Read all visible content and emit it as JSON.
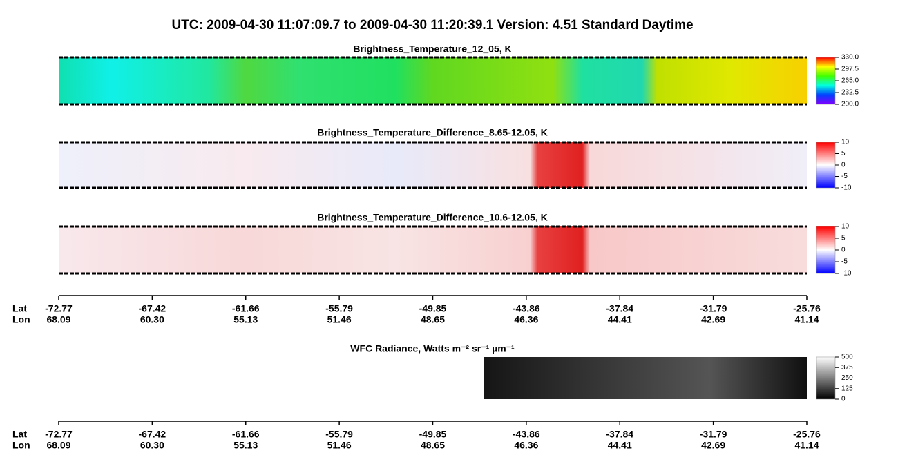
{
  "title": "UTC:  2009-04-30   11:07:09.7  to  2009-04-30   11:20:39.1    Version: 4.51  Standard Daytime",
  "panels": [
    {
      "title": "Brightness_Temperature_12_05, K",
      "colorbar": [
        "330.0",
        "297.5",
        "265.0",
        "232.5",
        "200.0"
      ]
    },
    {
      "title": "Brightness_Temperature_Difference_8.65-12.05, K",
      "colorbar": [
        "10",
        "5",
        "0",
        "-5",
        "-10"
      ]
    },
    {
      "title": "Brightness_Temperature_Difference_10.6-12.05, K",
      "colorbar": [
        "10",
        "5",
        "0",
        "-5",
        "-10"
      ]
    },
    {
      "title": "WFC Radiance, Watts m⁻² sr⁻¹ µm⁻¹",
      "colorbar": [
        "500",
        "375",
        "250",
        "125",
        "0"
      ]
    }
  ],
  "axis": {
    "lat_label": "Lat",
    "lon_label": "Lon",
    "lat": [
      "-72.77",
      "-67.42",
      "-61.66",
      "-55.79",
      "-49.85",
      "-43.86",
      "-37.84",
      "-31.79",
      "-25.76"
    ],
    "lon": [
      "68.09",
      "60.30",
      "55.13",
      "51.46",
      "48.65",
      "46.36",
      "44.41",
      "42.69",
      "41.14"
    ]
  }
}
